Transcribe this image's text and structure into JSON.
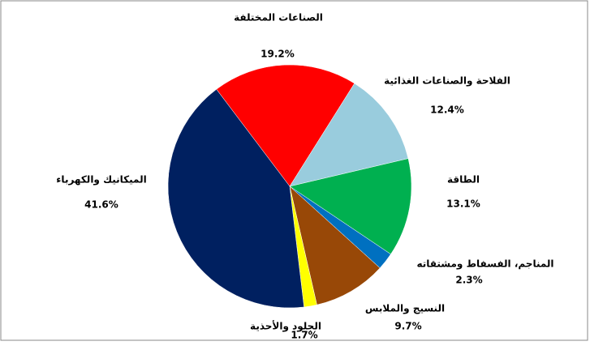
{
  "chart_data": {
    "type": "pie",
    "categories": [
      "الصناعات المختلفة",
      "الفلاحة والصناعات الغذائية",
      "الطاقة",
      "المناجم، الفسفاط ومشتقاته",
      "النسيج والملابس",
      "الجلود والأحذية",
      "الميكانيك والكهرباء"
    ],
    "values": [
      19.2,
      12.4,
      13.1,
      2.3,
      9.7,
      1.7,
      41.6
    ],
    "value_labels": [
      "19.2%",
      "12.4%",
      "13.1%",
      "2.3%",
      "9.7%",
      "1.7%",
      "41.6%"
    ],
    "colors": [
      "#ff0000",
      "#99ccdd",
      "#00b050",
      "#0070c0",
      "#984807",
      "#ffff00",
      "#002060"
    ]
  }
}
